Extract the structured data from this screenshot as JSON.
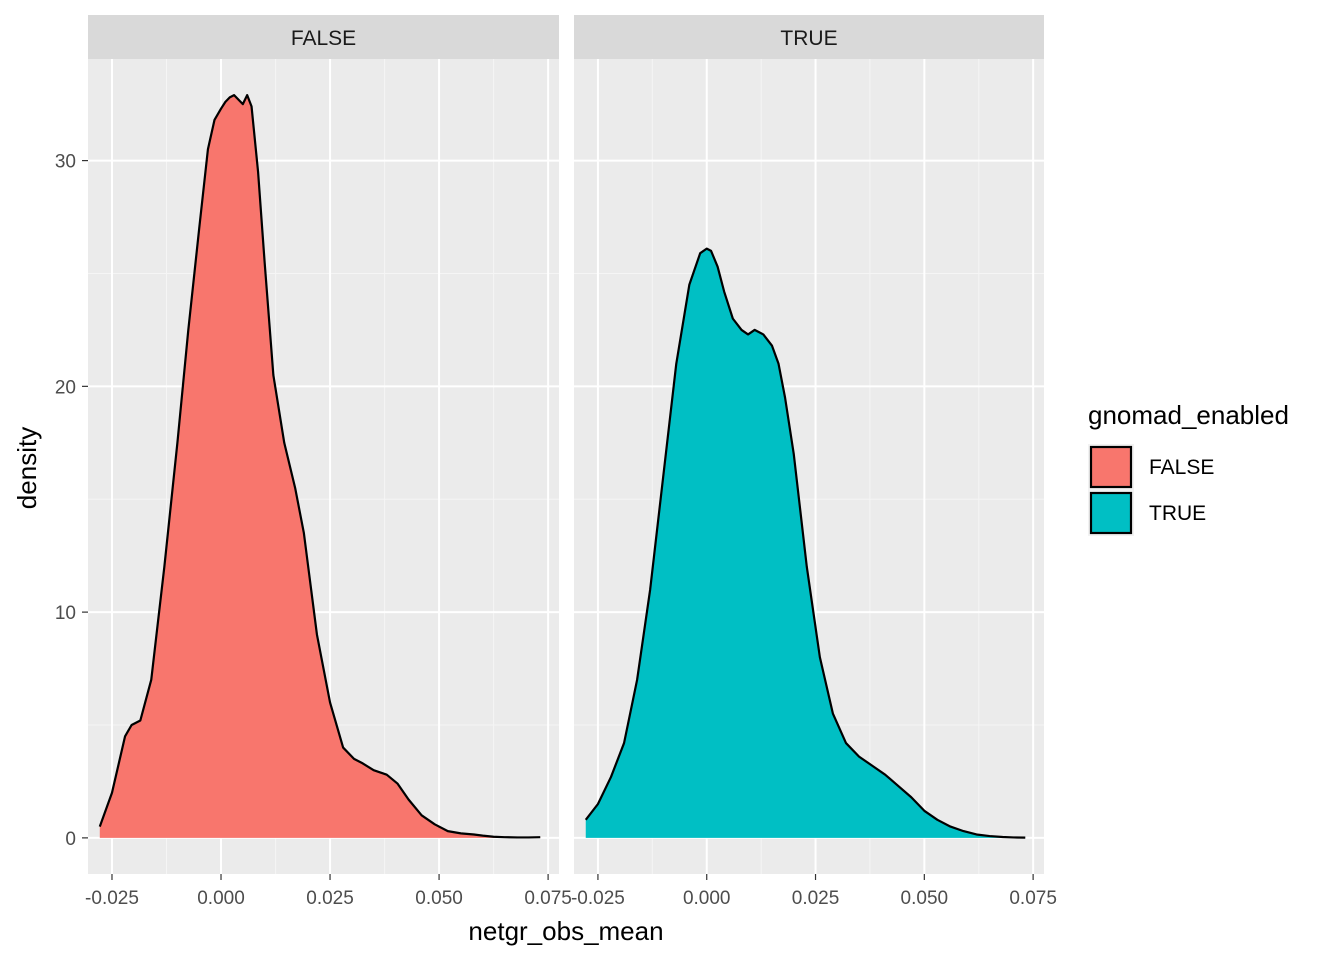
{
  "chart_data": {
    "type": "area",
    "subtype": "density",
    "facet_variable": "gnomad_enabled",
    "xlabel": "netgr_obs_mean",
    "ylabel": "density",
    "xlim": [
      -0.0305,
      0.0775
    ],
    "ylim": [
      -1.6,
      34.5
    ],
    "x_ticks": [
      -0.025,
      0.0,
      0.025,
      0.05,
      0.075
    ],
    "x_tick_labels": [
      "-0.025",
      "0.000",
      "0.025",
      "0.050",
      "0.075"
    ],
    "y_ticks": [
      0,
      10,
      20,
      30
    ],
    "y_tick_labels": [
      "0",
      "10",
      "20",
      "30"
    ],
    "grid": true,
    "legend": {
      "title": "gnomad_enabled",
      "position": "right",
      "entries": [
        {
          "label": "FALSE",
          "color": "#F8766D"
        },
        {
          "label": "TRUE",
          "color": "#00BFC4"
        }
      ]
    },
    "panels": [
      {
        "strip_label": "FALSE",
        "fill": "#F8766D",
        "x": [
          -0.0278,
          -0.025,
          -0.022,
          -0.0205,
          -0.0185,
          -0.016,
          -0.013,
          -0.01,
          -0.0075,
          -0.005,
          -0.003,
          -0.0015,
          0.0,
          0.001,
          0.002,
          0.003,
          0.004,
          0.005,
          0.006,
          0.007,
          0.0085,
          0.01,
          0.012,
          0.0145,
          0.017,
          0.019,
          0.02,
          0.022,
          0.025,
          0.028,
          0.0305,
          0.0325,
          0.035,
          0.038,
          0.0405,
          0.043,
          0.046,
          0.049,
          0.052,
          0.055,
          0.058,
          0.06,
          0.0625,
          0.065,
          0.068,
          0.0705,
          0.0732
        ],
        "y": [
          0.5,
          2.0,
          4.5,
          5.0,
          5.2,
          7.0,
          12.0,
          17.5,
          22.5,
          27.0,
          30.5,
          31.8,
          32.3,
          32.6,
          32.8,
          32.9,
          32.7,
          32.5,
          32.9,
          32.4,
          29.5,
          25.5,
          20.5,
          17.5,
          15.5,
          13.5,
          12.0,
          9.0,
          6.0,
          4.0,
          3.5,
          3.3,
          3.0,
          2.8,
          2.4,
          1.7,
          1.0,
          0.6,
          0.3,
          0.2,
          0.15,
          0.1,
          0.05,
          0.03,
          0.02,
          0.02,
          0.03
        ]
      },
      {
        "strip_label": "TRUE",
        "fill": "#00BFC4",
        "x": [
          -0.0278,
          -0.025,
          -0.022,
          -0.019,
          -0.016,
          -0.013,
          -0.01,
          -0.007,
          -0.004,
          -0.0015,
          0.0,
          0.001,
          0.0025,
          0.004,
          0.006,
          0.008,
          0.0095,
          0.011,
          0.013,
          0.015,
          0.0165,
          0.018,
          0.02,
          0.023,
          0.026,
          0.029,
          0.032,
          0.035,
          0.038,
          0.041,
          0.044,
          0.047,
          0.05,
          0.053,
          0.056,
          0.059,
          0.062,
          0.065,
          0.068,
          0.0705,
          0.0732
        ],
        "y": [
          0.8,
          1.5,
          2.7,
          4.2,
          7.0,
          11.0,
          16.0,
          21.0,
          24.5,
          25.9,
          26.1,
          26.0,
          25.3,
          24.2,
          23.0,
          22.5,
          22.3,
          22.5,
          22.3,
          21.8,
          21.0,
          19.5,
          17.0,
          12.0,
          8.0,
          5.5,
          4.2,
          3.6,
          3.2,
          2.8,
          2.3,
          1.8,
          1.2,
          0.8,
          0.5,
          0.3,
          0.15,
          0.08,
          0.04,
          0.02,
          0.01
        ]
      }
    ]
  }
}
